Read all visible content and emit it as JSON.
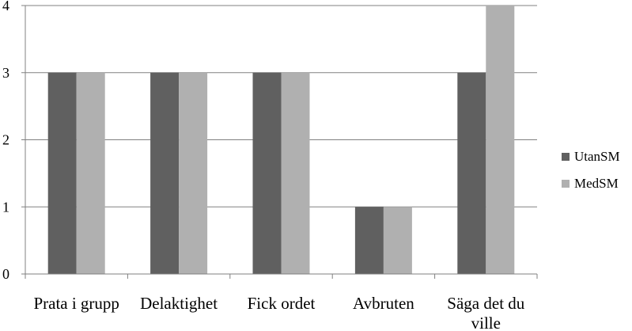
{
  "chart_data": {
    "type": "bar",
    "categories": [
      "Prata i grupp",
      "Delaktighet",
      "Fick ordet",
      "Avbruten",
      "Säga det du ville"
    ],
    "series": [
      {
        "name": "UtanSM",
        "values": [
          3,
          3,
          3,
          1,
          3
        ],
        "color": "#606060"
      },
      {
        "name": "MedSM",
        "values": [
          3,
          3,
          3,
          1,
          4
        ],
        "color": "#b0b0b0"
      }
    ],
    "ylim": [
      0,
      4
    ],
    "yticks": [
      0,
      1,
      2,
      3,
      4
    ],
    "grid": true,
    "legend_position": "right",
    "gridline_color": "#808080",
    "axis_color": "#808080"
  }
}
